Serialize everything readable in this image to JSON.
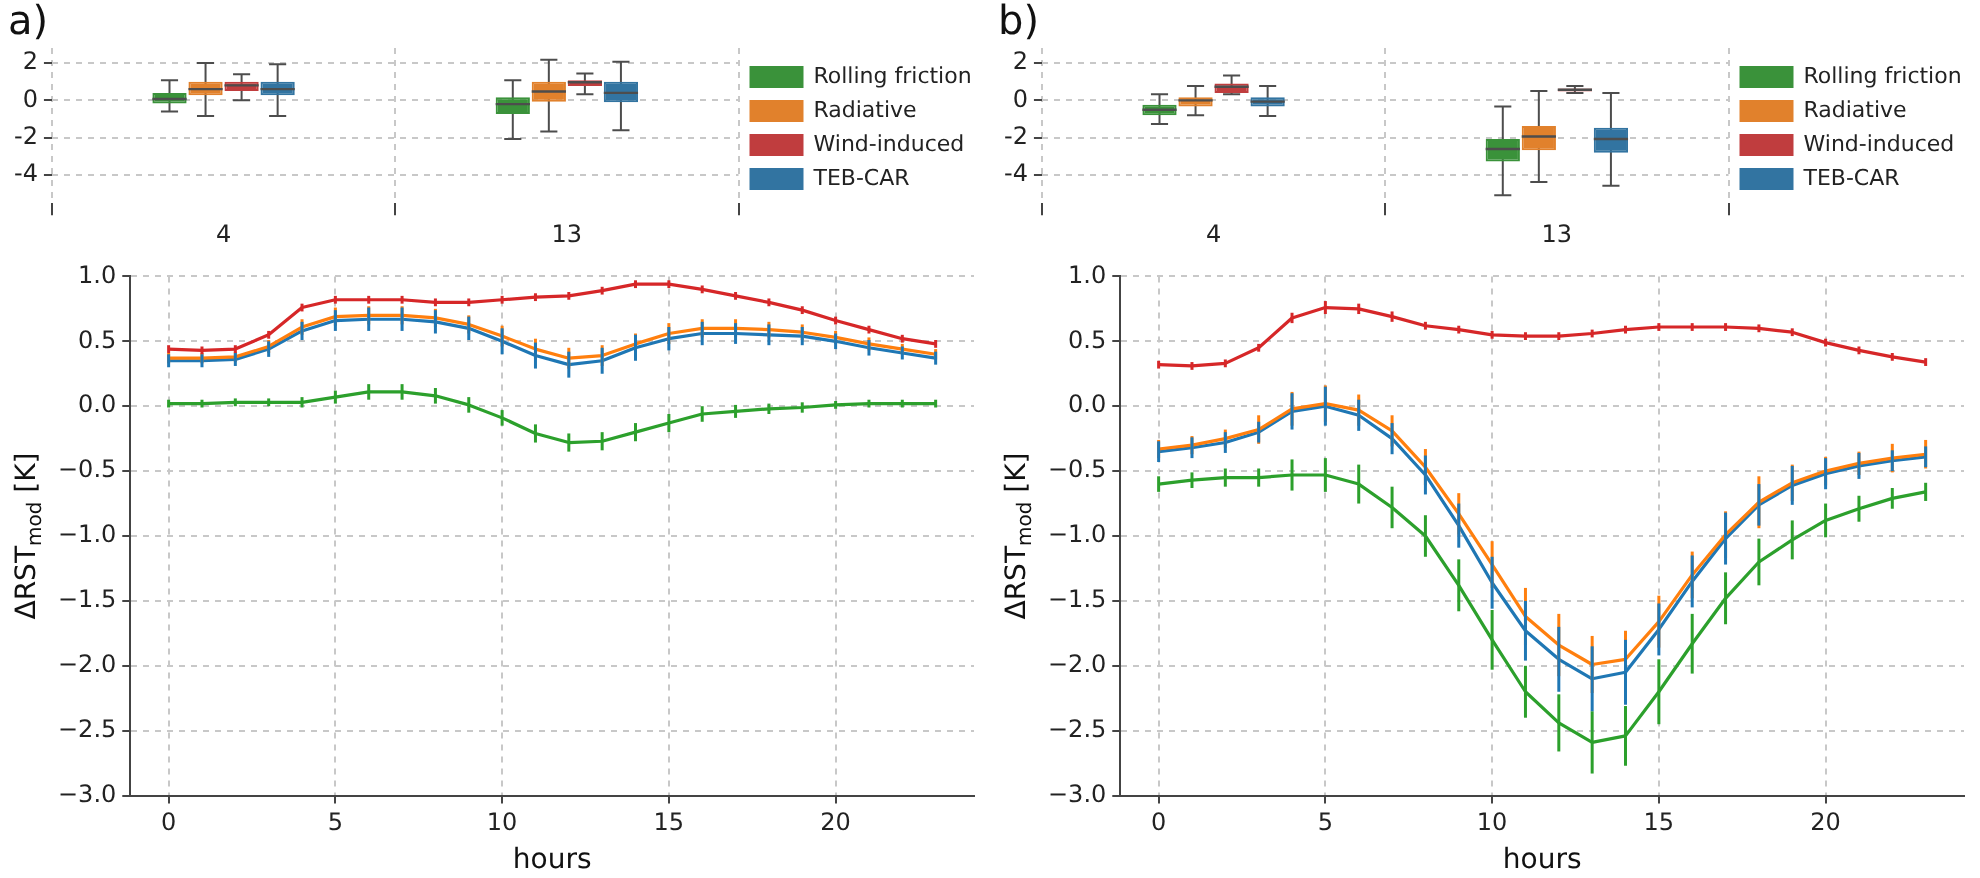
{
  "chart_data": [
    {
      "type": "box",
      "title": "a)",
      "categories": [
        "4",
        "13"
      ],
      "ylim": [
        -5.5,
        2.8
      ],
      "yticks": [
        2,
        0,
        -2,
        -4
      ],
      "grid": true,
      "legend": "right",
      "series": [
        {
          "name": "Rolling friction",
          "color": "#3a923a",
          "boxes": [
            {
              "low": -0.6,
              "q1": -0.17,
              "median": 0.07,
              "q3": 0.4,
              "high": 1.07
            },
            {
              "low": -2.07,
              "q1": -0.73,
              "median": -0.2,
              "q3": 0.17,
              "high": 1.07
            }
          ]
        },
        {
          "name": "Radiative",
          "color": "#e1812c",
          "boxes": [
            {
              "low": -0.83,
              "q1": 0.27,
              "median": 0.6,
              "q3": 1.0,
              "high": 2.0
            },
            {
              "low": -1.67,
              "q1": -0.07,
              "median": 0.47,
              "q3": 1.0,
              "high": 2.17
            }
          ]
        },
        {
          "name": "Wind-induced",
          "color": "#c03d3e",
          "boxes": [
            {
              "low": 0.0,
              "q1": 0.5,
              "median": 0.8,
              "q3": 1.0,
              "high": 1.4
            },
            {
              "low": 0.33,
              "q1": 0.77,
              "median": 0.97,
              "q3": 1.07,
              "high": 1.43
            }
          ]
        },
        {
          "name": "TEB-CAR",
          "color": "#3274a1",
          "boxes": [
            {
              "low": -0.83,
              "q1": 0.27,
              "median": 0.6,
              "q3": 1.0,
              "high": 1.93
            },
            {
              "low": -1.6,
              "q1": -0.1,
              "median": 0.4,
              "q3": 1.0,
              "high": 2.07
            }
          ]
        }
      ]
    },
    {
      "type": "box",
      "title": "b)",
      "categories": [
        "4",
        "13"
      ],
      "ylim": [
        -5.5,
        2.8
      ],
      "yticks": [
        2,
        0,
        -2,
        -4
      ],
      "grid": true,
      "legend": "right",
      "series": [
        {
          "name": "Rolling friction",
          "color": "#3a923a",
          "boxes": [
            {
              "low": -1.27,
              "q1": -0.8,
              "median": -0.5,
              "q3": -0.23,
              "high": 0.33
            },
            {
              "low": -5.07,
              "q1": -3.27,
              "median": -2.6,
              "q3": -2.07,
              "high": -0.33
            }
          ]
        },
        {
          "name": "Radiative",
          "color": "#e1812c",
          "boxes": [
            {
              "low": -0.8,
              "q1": -0.33,
              "median": 0.0,
              "q3": 0.17,
              "high": 0.77
            },
            {
              "low": -4.37,
              "q1": -2.67,
              "median": -1.93,
              "q3": -1.37,
              "high": 0.5
            }
          ]
        },
        {
          "name": "Wind-induced",
          "color": "#c03d3e",
          "boxes": [
            {
              "low": 0.33,
              "q1": 0.4,
              "median": 0.73,
              "q3": 0.9,
              "high": 1.33
            },
            {
              "low": 0.4,
              "q1": 0.47,
              "median": 0.57,
              "q3": 0.63,
              "high": 0.77
            }
          ]
        },
        {
          "name": "TEB-CAR",
          "color": "#3274a1",
          "boxes": [
            {
              "low": -0.83,
              "q1": -0.33,
              "median": -0.07,
              "q3": 0.17,
              "high": 0.77
            },
            {
              "low": -4.57,
              "q1": -2.8,
              "median": -2.07,
              "q3": -1.47,
              "high": 0.4
            }
          ]
        }
      ]
    },
    {
      "type": "line",
      "xlabel": "hours",
      "ylabel": "ΔRST$_{mod}$ [K]",
      "x": [
        0,
        1,
        2,
        3,
        4,
        5,
        6,
        7,
        8,
        9,
        10,
        11,
        12,
        13,
        14,
        15,
        16,
        17,
        18,
        19,
        20,
        21,
        22,
        23
      ],
      "xlim": [
        -1.15,
        24.15
      ],
      "xticks": [
        0,
        5,
        10,
        15,
        20
      ],
      "ylim": [
        -3,
        1
      ],
      "yticks": [
        {
          "value": -3,
          "label": "−3.0"
        },
        {
          "value": -2.5,
          "label": "−2.5"
        },
        {
          "value": -2,
          "label": "−2.0"
        },
        {
          "value": -1.5,
          "label": "−1.5"
        },
        {
          "value": -1,
          "label": "−1.0"
        },
        {
          "value": -0.5,
          "label": "−0.5"
        },
        {
          "value": 0,
          "label": "0.0"
        },
        {
          "value": 0.5,
          "label": "0.5"
        },
        {
          "value": 1,
          "label": "1.0"
        }
      ],
      "grid": true,
      "marker": "none",
      "line_style": "solid",
      "series": [
        {
          "color": "#2ca02c",
          "values": [
            0.02,
            0.02,
            0.03,
            0.03,
            0.03,
            0.07,
            0.11,
            0.11,
            0.08,
            0.01,
            -0.09,
            -0.21,
            -0.28,
            -0.27,
            -0.2,
            -0.13,
            -0.06,
            -0.04,
            -0.02,
            -0.01,
            0.01,
            0.02,
            0.02,
            0.02
          ],
          "errors": [
            0.03,
            0.03,
            0.03,
            0.03,
            0.04,
            0.05,
            0.06,
            0.06,
            0.06,
            0.06,
            0.06,
            0.07,
            0.07,
            0.07,
            0.07,
            0.07,
            0.06,
            0.05,
            0.04,
            0.04,
            0.03,
            0.03,
            0.03,
            0.03
          ]
        },
        {
          "color": "#ff7f0e",
          "values": [
            0.37,
            0.37,
            0.38,
            0.46,
            0.61,
            0.69,
            0.7,
            0.7,
            0.68,
            0.63,
            0.54,
            0.44,
            0.37,
            0.39,
            0.48,
            0.56,
            0.6,
            0.6,
            0.59,
            0.57,
            0.53,
            0.48,
            0.44,
            0.4
          ],
          "errors": [
            0.04,
            0.04,
            0.04,
            0.05,
            0.06,
            0.07,
            0.07,
            0.07,
            0.07,
            0.07,
            0.08,
            0.08,
            0.08,
            0.08,
            0.08,
            0.08,
            0.07,
            0.07,
            0.06,
            0.06,
            0.05,
            0.05,
            0.04,
            0.04
          ]
        },
        {
          "color": "#d62728",
          "values": [
            0.44,
            0.43,
            0.44,
            0.55,
            0.76,
            0.82,
            0.82,
            0.82,
            0.8,
            0.8,
            0.82,
            0.84,
            0.85,
            0.89,
            0.94,
            0.94,
            0.9,
            0.85,
            0.8,
            0.74,
            0.66,
            0.59,
            0.52,
            0.48
          ],
          "errors": [
            0.03,
            0.03,
            0.03,
            0.03,
            0.03,
            0.03,
            0.03,
            0.03,
            0.03,
            0.03,
            0.03,
            0.03,
            0.03,
            0.03,
            0.03,
            0.03,
            0.03,
            0.03,
            0.03,
            0.03,
            0.03,
            0.03,
            0.03,
            0.03
          ]
        },
        {
          "color": "#1f77b4",
          "values": [
            0.35,
            0.35,
            0.36,
            0.44,
            0.58,
            0.66,
            0.67,
            0.67,
            0.65,
            0.6,
            0.5,
            0.39,
            0.32,
            0.35,
            0.45,
            0.52,
            0.56,
            0.56,
            0.55,
            0.54,
            0.5,
            0.45,
            0.41,
            0.37
          ],
          "errors": [
            0.05,
            0.05,
            0.05,
            0.06,
            0.07,
            0.08,
            0.09,
            0.09,
            0.09,
            0.09,
            0.1,
            0.1,
            0.1,
            0.1,
            0.1,
            0.09,
            0.09,
            0.08,
            0.08,
            0.07,
            0.06,
            0.06,
            0.05,
            0.05
          ]
        }
      ]
    },
    {
      "type": "line",
      "xlabel": "hours",
      "ylabel": "ΔRST$_{mod}$ [K]",
      "x": [
        0,
        1,
        2,
        3,
        4,
        5,
        6,
        7,
        8,
        9,
        10,
        11,
        12,
        13,
        14,
        15,
        16,
        17,
        18,
        19,
        20,
        21,
        22,
        23
      ],
      "xlim": [
        -1.15,
        24.15
      ],
      "xticks": [
        0,
        5,
        10,
        15,
        20
      ],
      "ylim": [
        -3,
        1
      ],
      "yticks": [
        {
          "value": -3,
          "label": "−3.0"
        },
        {
          "value": -2.5,
          "label": "−2.5"
        },
        {
          "value": -2,
          "label": "−2.0"
        },
        {
          "value": -1.5,
          "label": "−1.5"
        },
        {
          "value": -1,
          "label": "−1.0"
        },
        {
          "value": -0.5,
          "label": "−0.5"
        },
        {
          "value": 0,
          "label": "0.0"
        },
        {
          "value": 0.5,
          "label": "0.5"
        },
        {
          "value": 1,
          "label": "1.0"
        }
      ],
      "grid": true,
      "marker": "none",
      "line_style": "solid",
      "series": [
        {
          "color": "#2ca02c",
          "values": [
            -0.6,
            -0.57,
            -0.55,
            -0.55,
            -0.53,
            -0.53,
            -0.6,
            -0.78,
            -1.0,
            -1.38,
            -1.8,
            -2.2,
            -2.44,
            -2.59,
            -2.54,
            -2.2,
            -1.83,
            -1.48,
            -1.2,
            -1.03,
            -0.88,
            -0.79,
            -0.71,
            -0.66
          ],
          "errors": [
            0.06,
            0.06,
            0.07,
            0.07,
            0.12,
            0.13,
            0.15,
            0.16,
            0.16,
            0.2,
            0.23,
            0.2,
            0.22,
            0.24,
            0.23,
            0.25,
            0.23,
            0.2,
            0.18,
            0.15,
            0.13,
            0.1,
            0.08,
            0.07
          ]
        },
        {
          "color": "#ff7f0e",
          "values": [
            -0.33,
            -0.3,
            -0.25,
            -0.18,
            -0.02,
            0.02,
            -0.03,
            -0.19,
            -0.47,
            -0.83,
            -1.22,
            -1.62,
            -1.84,
            -1.99,
            -1.95,
            -1.66,
            -1.3,
            -0.99,
            -0.74,
            -0.59,
            -0.5,
            -0.44,
            -0.4,
            -0.37
          ],
          "errors": [
            0.07,
            0.07,
            0.07,
            0.11,
            0.13,
            0.14,
            0.12,
            0.12,
            0.14,
            0.16,
            0.18,
            0.22,
            0.24,
            0.22,
            0.22,
            0.2,
            0.18,
            0.18,
            0.2,
            0.14,
            0.11,
            0.09,
            0.11,
            0.11
          ]
        },
        {
          "color": "#d62728",
          "values": [
            0.32,
            0.31,
            0.33,
            0.45,
            0.68,
            0.76,
            0.75,
            0.69,
            0.62,
            0.59,
            0.55,
            0.54,
            0.54,
            0.56,
            0.59,
            0.61,
            0.61,
            0.61,
            0.6,
            0.57,
            0.49,
            0.43,
            0.38,
            0.34
          ],
          "errors": [
            0.03,
            0.03,
            0.03,
            0.03,
            0.04,
            0.05,
            0.04,
            0.04,
            0.03,
            0.03,
            0.03,
            0.03,
            0.03,
            0.03,
            0.03,
            0.03,
            0.03,
            0.03,
            0.03,
            0.03,
            0.03,
            0.03,
            0.03,
            0.03
          ]
        },
        {
          "color": "#1f77b4",
          "values": [
            -0.35,
            -0.32,
            -0.28,
            -0.2,
            -0.04,
            0.0,
            -0.07,
            -0.25,
            -0.53,
            -0.92,
            -1.36,
            -1.73,
            -1.95,
            -2.1,
            -2.05,
            -1.72,
            -1.35,
            -1.02,
            -0.76,
            -0.61,
            -0.52,
            -0.46,
            -0.42,
            -0.39
          ],
          "errors": [
            0.08,
            0.08,
            0.08,
            0.08,
            0.14,
            0.15,
            0.12,
            0.12,
            0.15,
            0.17,
            0.2,
            0.23,
            0.25,
            0.25,
            0.25,
            0.2,
            0.2,
            0.2,
            0.16,
            0.15,
            0.12,
            0.1,
            0.08,
            0.08
          ]
        }
      ]
    }
  ]
}
